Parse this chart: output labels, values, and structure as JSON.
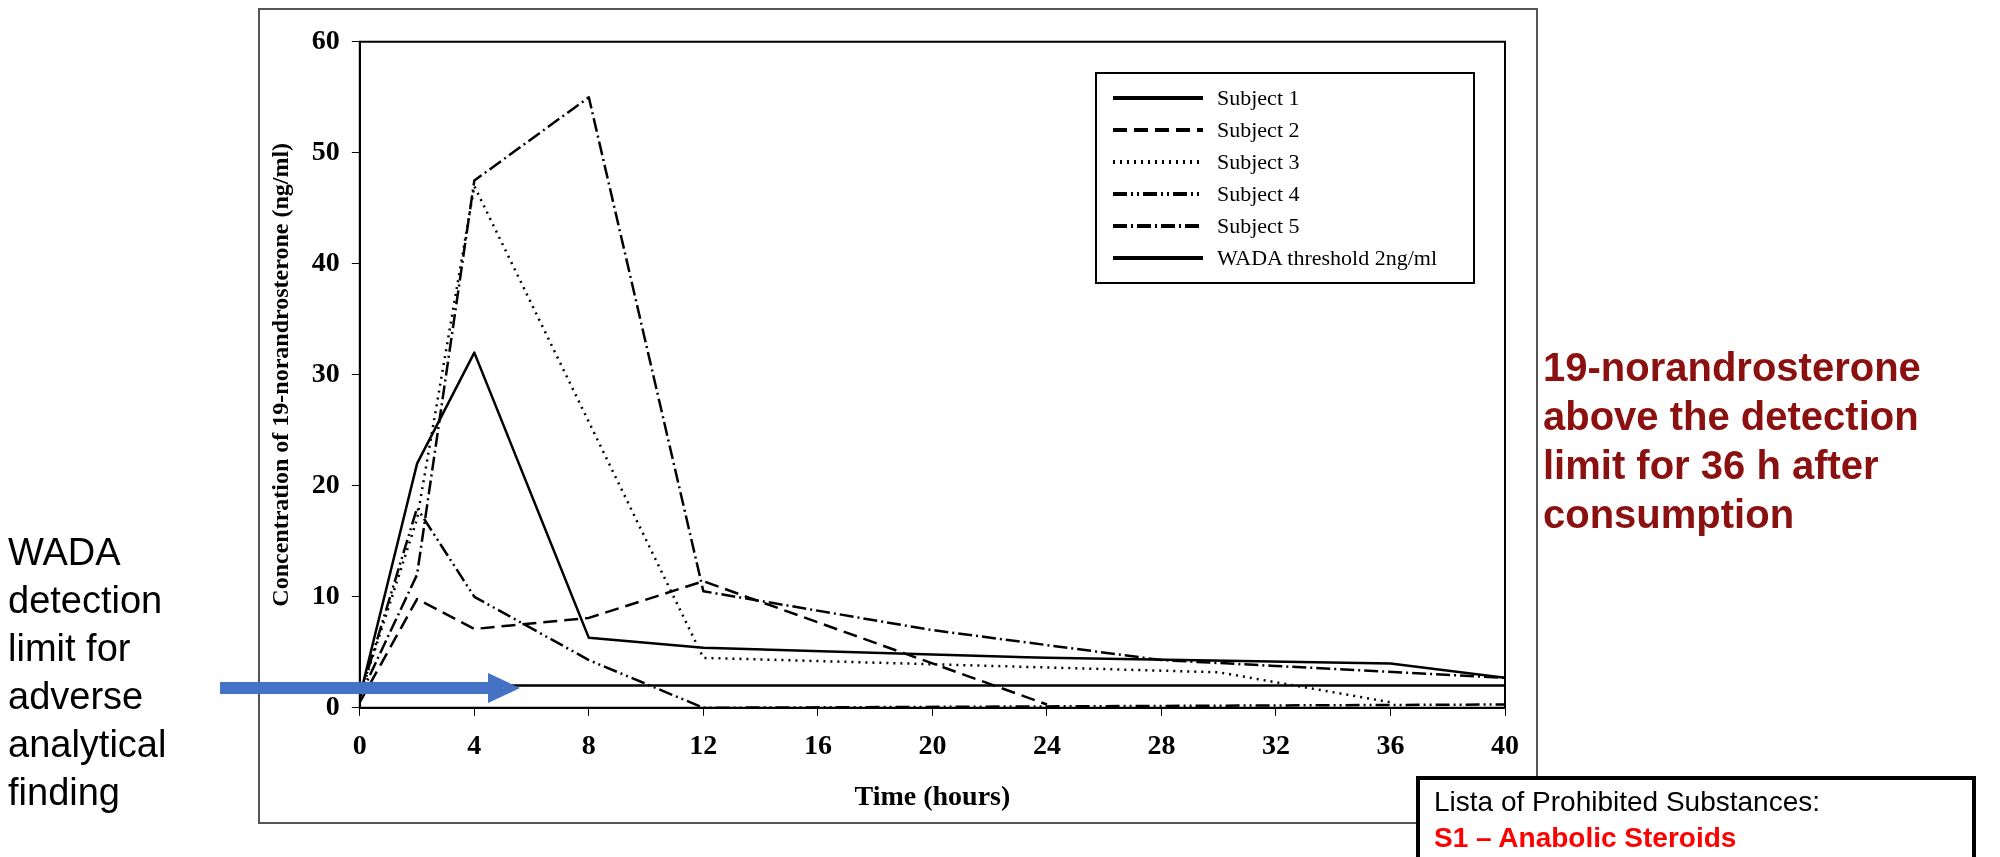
{
  "chart_data": {
    "type": "line",
    "xlabel": "Time (hours)",
    "ylabel": "Concentration of 19-norandrosterone (ng/ml)",
    "xlim": [
      0,
      40
    ],
    "xticks": [
      0,
      4,
      8,
      12,
      16,
      20,
      24,
      28,
      32,
      36,
      40
    ],
    "ylim": [
      0,
      60
    ],
    "yticks": [
      0,
      10,
      20,
      30,
      40,
      50,
      60
    ],
    "grid": false,
    "legend": "top right",
    "marker": "none",
    "series": [
      {
        "name": "Subject 1",
        "color": "#000000",
        "line_style": "solid",
        "x": [
          0,
          2,
          4,
          8,
          12,
          24,
          36,
          40
        ],
        "values": [
          1,
          22,
          32,
          6.3,
          5.4,
          4.5,
          4,
          2.7
        ]
      },
      {
        "name": "Subject 2",
        "color": "#000000",
        "line_style": "dashed",
        "x": [
          0,
          2,
          4,
          8,
          12,
          24
        ],
        "values": [
          0.5,
          9.8,
          7.1,
          8.1,
          11.4,
          0.3
        ]
      },
      {
        "name": "Subject 3",
        "color": "#000000",
        "line_style": "dotted",
        "x": [
          0,
          2,
          4,
          12,
          30,
          36
        ],
        "values": [
          1,
          17,
          47,
          4.5,
          3.2,
          0.5
        ]
      },
      {
        "name": "Subject 4",
        "color": "#000000",
        "line_style": "dashed",
        "x": [
          0,
          2,
          4,
          8,
          12,
          40
        ],
        "values": [
          1,
          18,
          10,
          4.3,
          0,
          0.3
        ]
      },
      {
        "name": "Subject 5",
        "color": "#000000",
        "line_style": "dashed",
        "x": [
          0,
          2,
          4,
          8,
          12,
          20,
          28,
          40
        ],
        "values": [
          1,
          12,
          47.5,
          55,
          10.5,
          7,
          4.3,
          2.7
        ]
      }
    ],
    "ref_lines": [
      {
        "axis": "y",
        "value": 2,
        "label": "WADA threshold 2ng/ml",
        "color": "#000000",
        "line_style": "solid"
      }
    ],
    "annotations": [
      "WADA detection limit for adverse analytical finding",
      "19-norandrosterone above the detection limit for 36 h after consumption",
      "Lista of Prohibited Substances:",
      "S1 – Anabolic Steroids"
    ]
  }
}
